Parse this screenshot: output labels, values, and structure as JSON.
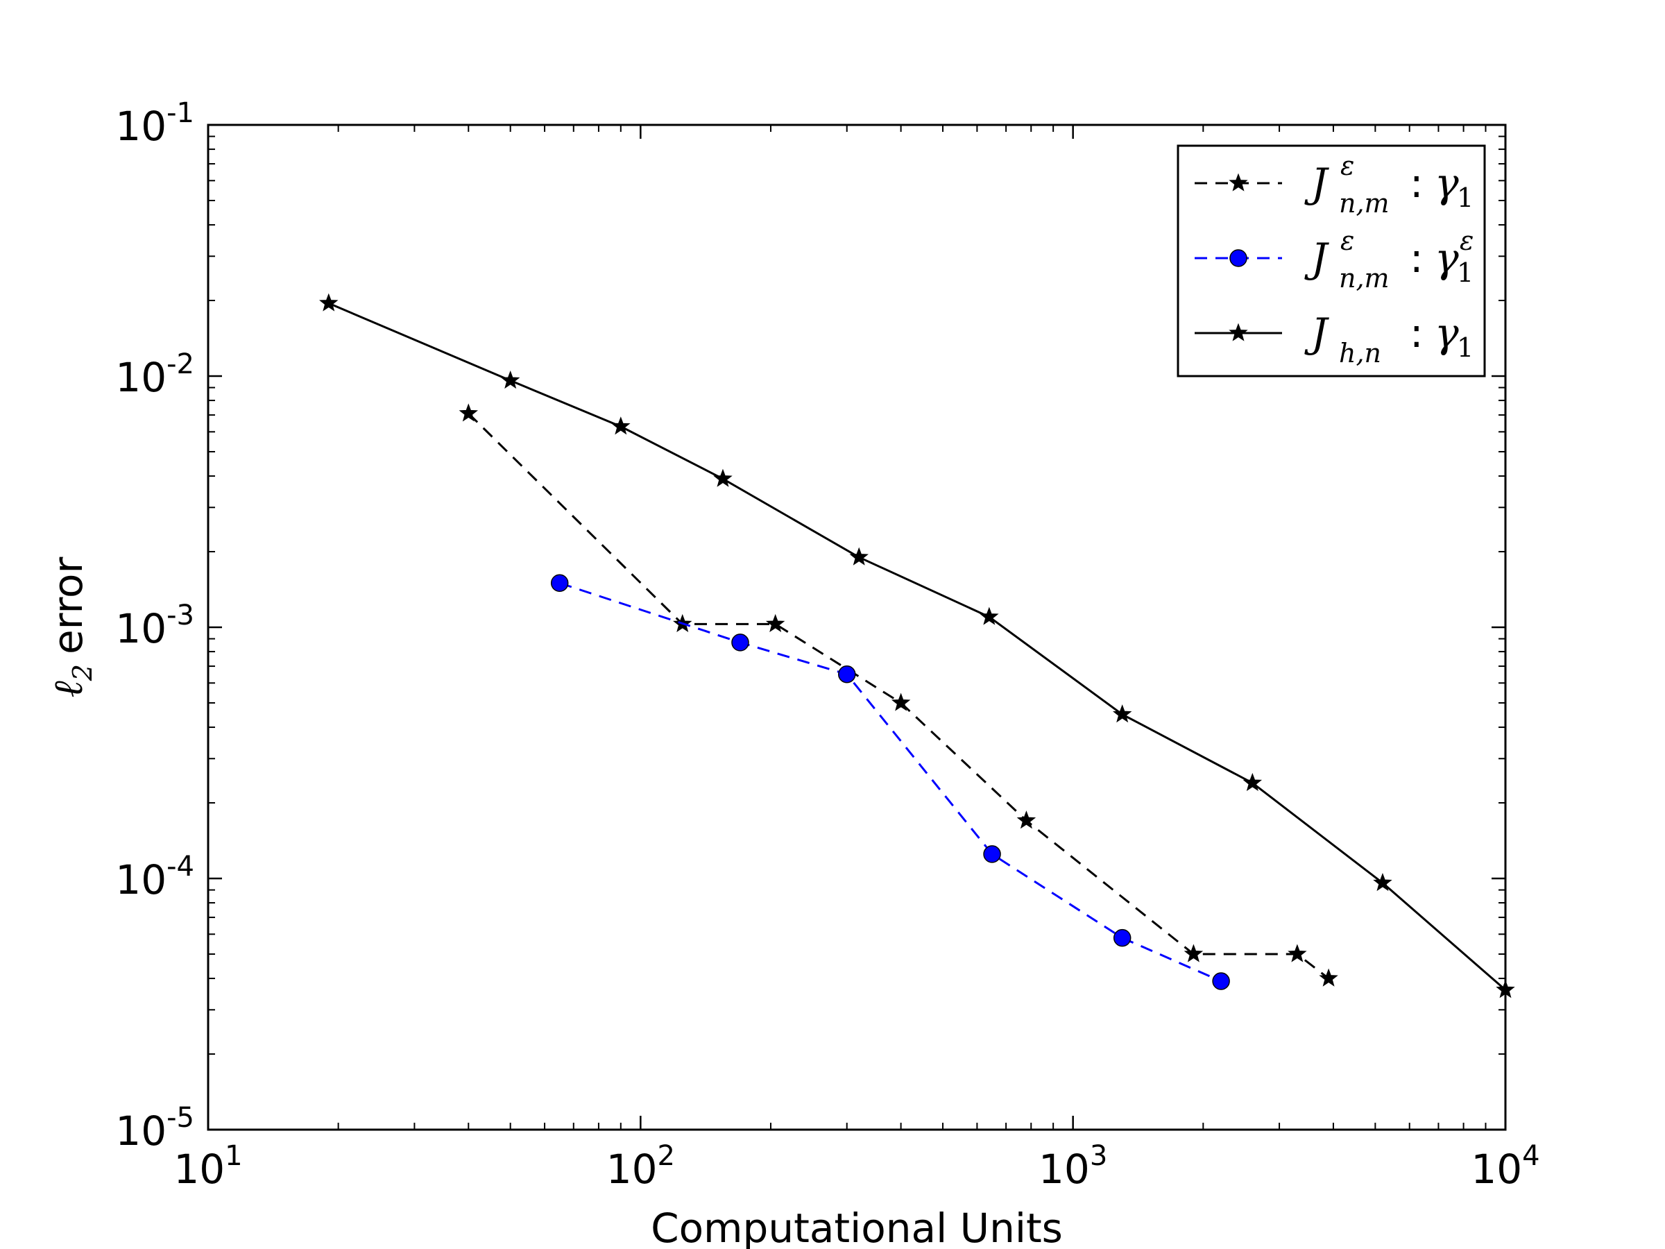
{
  "chart_data": {
    "type": "line",
    "title": "",
    "xlabel": "Computational Units",
    "ylabel": "error",
    "ylabel_symbol": "ℓ",
    "ylabel_sub": "2",
    "xscale": "log",
    "yscale": "log",
    "xlim": [
      10,
      10000
    ],
    "ylim": [
      1e-05,
      0.1
    ],
    "x_ticks": [
      {
        "value": 10,
        "base": "10",
        "exp": "1"
      },
      {
        "value": 100,
        "base": "10",
        "exp": "2"
      },
      {
        "value": 1000,
        "base": "10",
        "exp": "3"
      },
      {
        "value": 10000,
        "base": "10",
        "exp": "4"
      }
    ],
    "y_ticks": [
      {
        "value": 0.1,
        "base": "10",
        "exp": "-1"
      },
      {
        "value": 0.01,
        "base": "10",
        "exp": "-2"
      },
      {
        "value": 0.001,
        "base": "10",
        "exp": "-3"
      },
      {
        "value": 0.0001,
        "base": "10",
        "exp": "-4"
      },
      {
        "value": 1e-05,
        "base": "10",
        "exp": "-5"
      }
    ],
    "legend_position": "top-right",
    "series": [
      {
        "name": "J_{n,m}^ε : γ_1",
        "legend": {
          "base": "J",
          "sup": "ε",
          "sub": "n,m",
          "colon": ":",
          "gamma": "γ",
          "gamma_sub": "1",
          "gamma_sup": ""
        },
        "color": "#000000",
        "line_style": "dashed",
        "marker": "star",
        "x": [
          40,
          125,
          205,
          400,
          780,
          1900,
          3300,
          3900
        ],
        "y": [
          0.0071,
          0.00103,
          0.00103,
          0.0005,
          0.00017,
          5e-05,
          5e-05,
          4e-05
        ]
      },
      {
        "name": "J_{n,m}^ε : γ_1^ε",
        "legend": {
          "base": "J",
          "sup": "ε",
          "sub": "n,m",
          "colon": ":",
          "gamma": "γ",
          "gamma_sub": "1",
          "gamma_sup": "ε"
        },
        "color": "#0000ff",
        "line_style": "dashed",
        "marker": "circle",
        "x": [
          65,
          170,
          300,
          650,
          1300,
          2200
        ],
        "y": [
          0.0015,
          0.00087,
          0.00065,
          0.000125,
          5.8e-05,
          3.9e-05
        ]
      },
      {
        "name": "J_{h,n} : γ_1",
        "legend": {
          "base": "J",
          "sup": "",
          "sub": "h,n",
          "colon": ":",
          "gamma": "γ",
          "gamma_sub": "1",
          "gamma_sup": ""
        },
        "color": "#000000",
        "line_style": "solid",
        "marker": "star",
        "x": [
          19,
          50,
          90,
          155,
          320,
          640,
          1300,
          2600,
          5200,
          10000
        ],
        "y": [
          0.0195,
          0.0096,
          0.0063,
          0.0039,
          0.0019,
          0.0011,
          0.00045,
          0.00024,
          9.6e-05,
          3.6e-05
        ]
      }
    ]
  }
}
